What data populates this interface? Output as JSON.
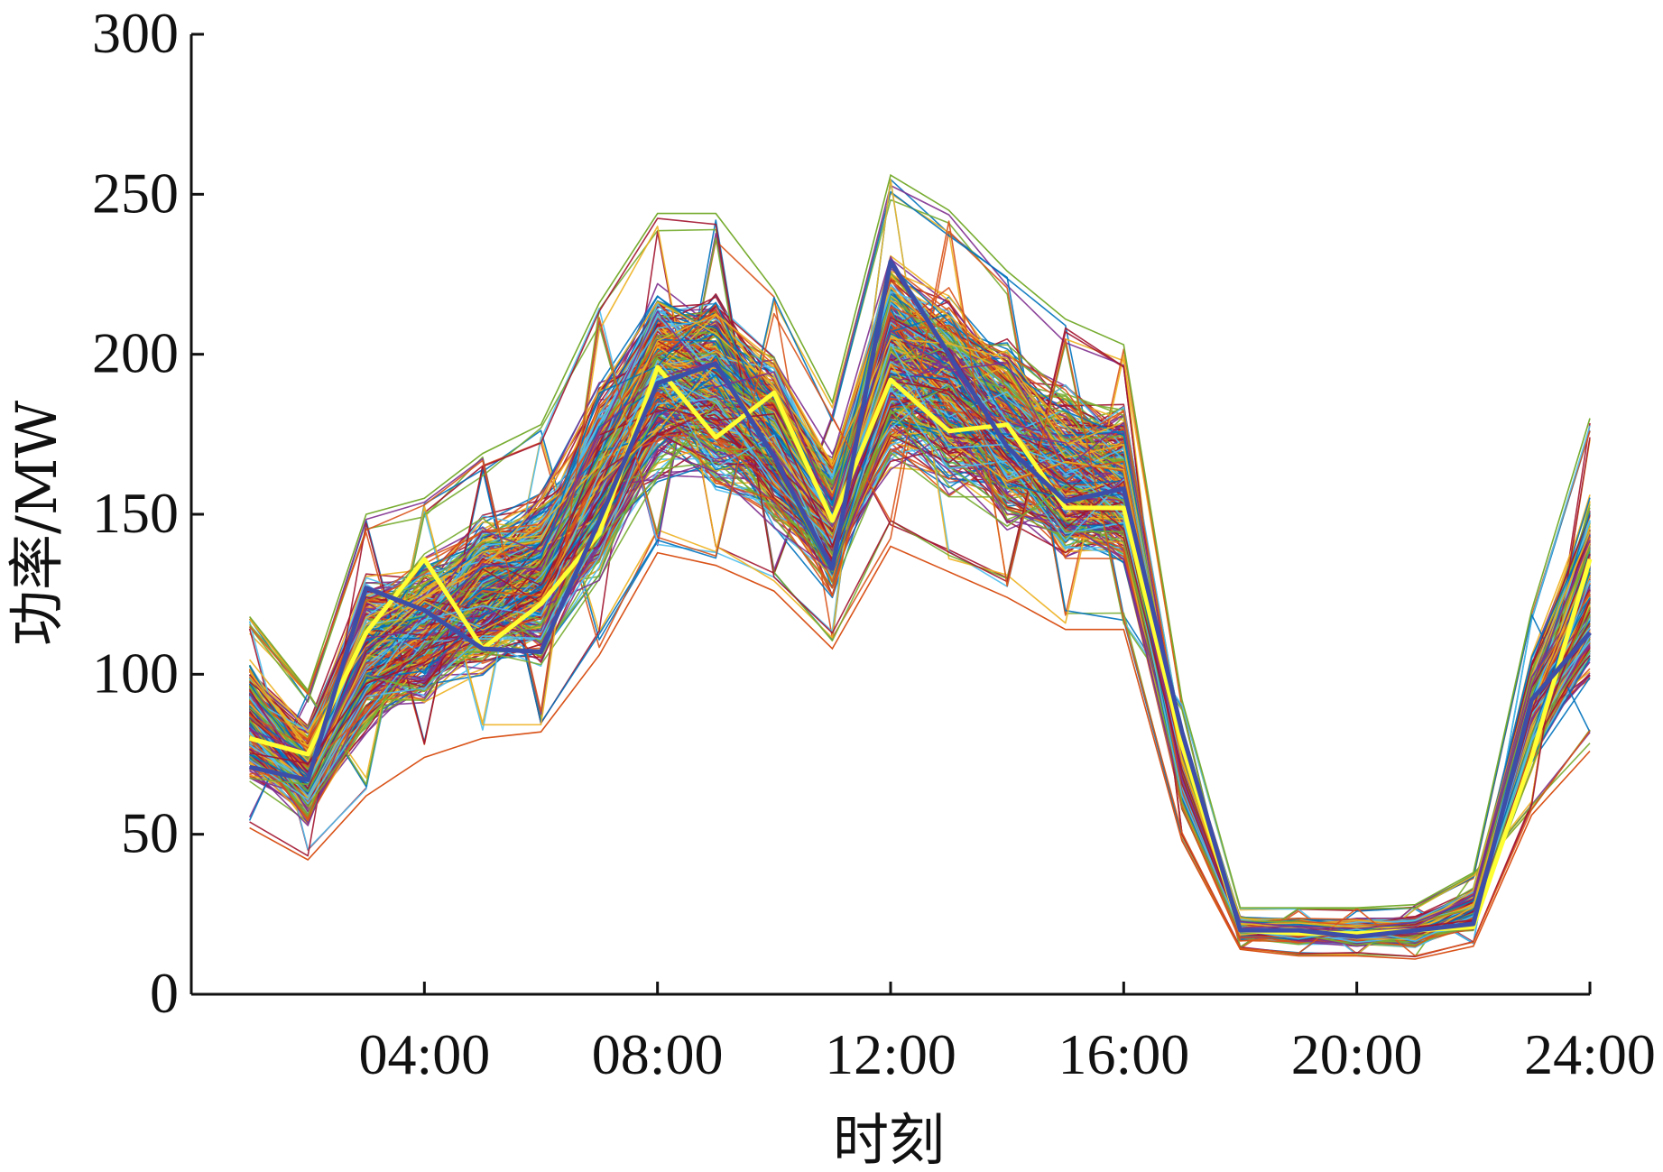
{
  "chart_data": {
    "type": "line",
    "xlabel": "时刻",
    "ylabel": "功率/MW",
    "x_hours": [
      1,
      2,
      3,
      4,
      5,
      6,
      7,
      8,
      9,
      10,
      11,
      12,
      13,
      14,
      15,
      16,
      17,
      18,
      19,
      20,
      21,
      22,
      23,
      24
    ],
    "xlim": [
      0,
      24
    ],
    "ylim": [
      0,
      300
    ],
    "x_ticks": [
      "04:00",
      "08:00",
      "12:00",
      "16:00",
      "20:00",
      "24:00"
    ],
    "y_ticks": [
      "0",
      "50",
      "100",
      "150",
      "200",
      "250",
      "300"
    ],
    "grid": false,
    "band": {
      "min": [
        52,
        42,
        62,
        74,
        80,
        82,
        106,
        138,
        134,
        126,
        108,
        140,
        132,
        124,
        114,
        114,
        48,
        14,
        12,
        12,
        11,
        15,
        56,
        76
      ],
      "max": [
        118,
        95,
        150,
        155,
        169,
        178,
        216,
        244,
        244,
        220,
        185,
        256,
        245,
        226,
        211,
        203,
        92,
        27,
        27,
        27,
        28,
        38,
        120,
        180
      ]
    },
    "series": [
      {
        "values": [
          80,
          75,
          113,
          136,
          108,
          122,
          144,
          196,
          174,
          188,
          148,
          192,
          176,
          178,
          152,
          152,
          78,
          20,
          19,
          19,
          20,
          21,
          74,
          136
        ]
      },
      {
        "values": [
          71,
          67,
          127,
          120,
          108,
          107,
          148,
          191,
          197,
          168,
          133,
          229,
          200,
          171,
          154,
          158,
          82,
          20,
          20,
          18,
          20,
          22,
          92,
          113
        ]
      }
    ]
  }
}
